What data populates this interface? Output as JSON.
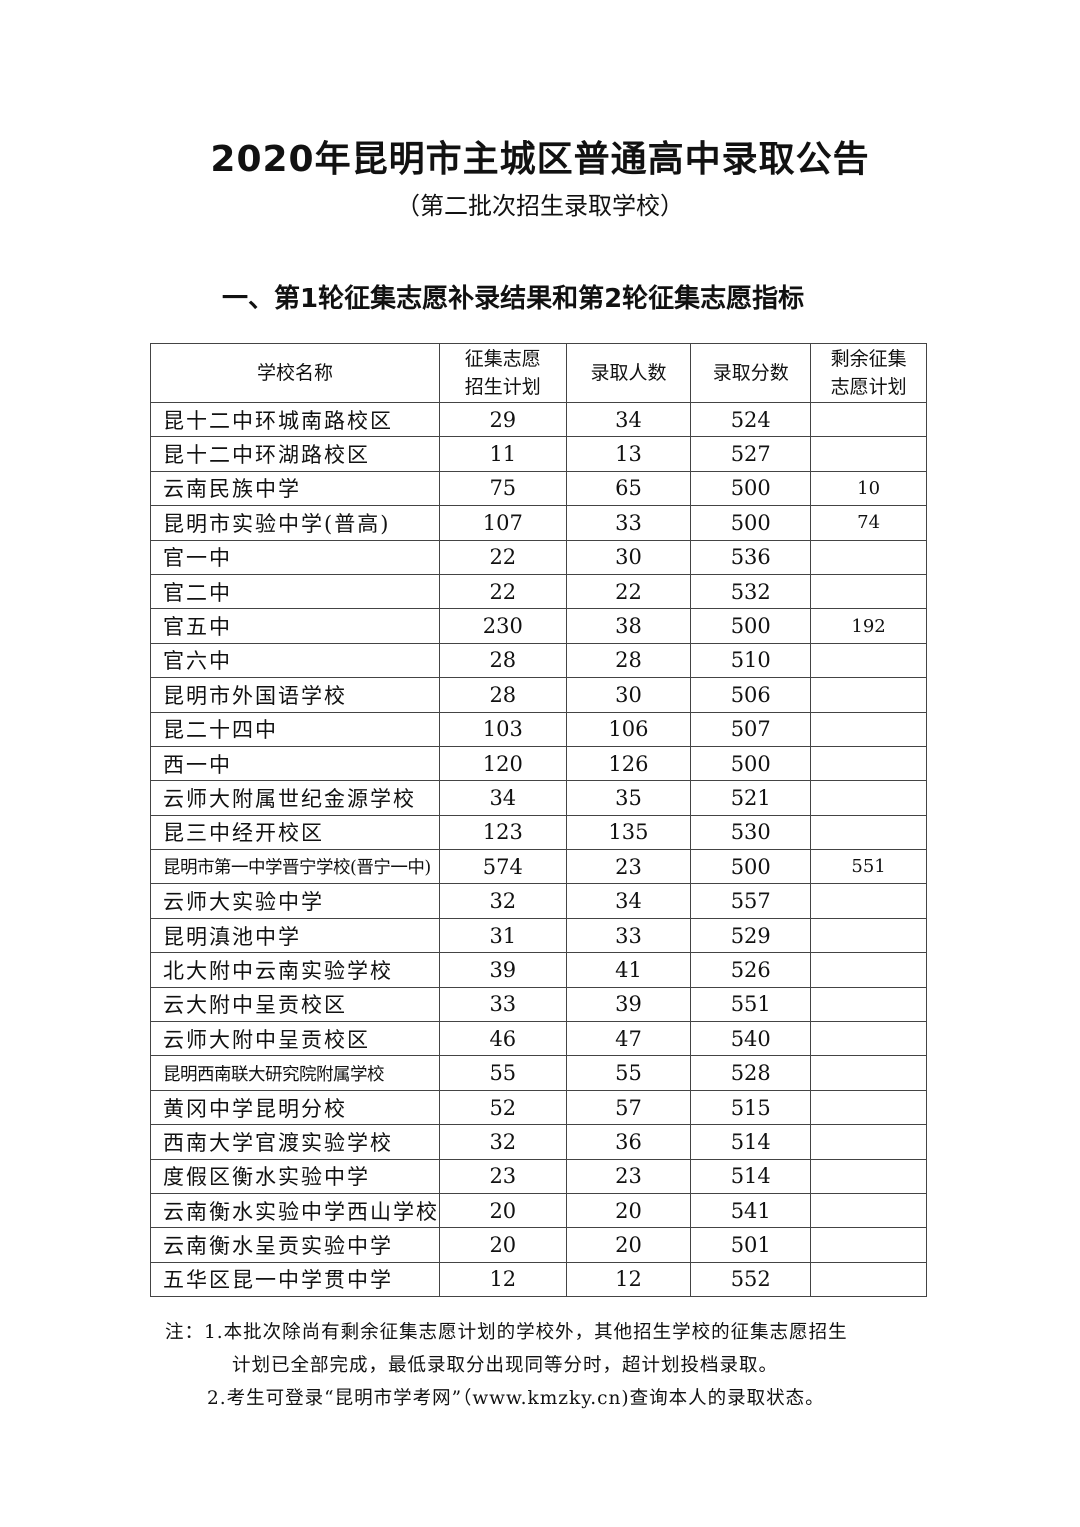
{
  "title": "2020年昆明市主城区普通高中录取公告",
  "subtitle": "（第二批次招生录取学校）",
  "section_heading": "一、第1轮征集志愿补录结果和第2轮征集志愿指标",
  "table": {
    "headers": [
      "学校名称",
      "征集志愿招生计划",
      "录取人数",
      "录取分数",
      "剩余征集志愿计划"
    ],
    "header_lines": [
      [
        "学校名称"
      ],
      [
        "征集志愿",
        "招生计划"
      ],
      [
        "录取人数"
      ],
      [
        "录取分数"
      ],
      [
        "剩余征集",
        "志愿计划"
      ]
    ],
    "rows": [
      [
        "昆十二中环城南路校区",
        "29",
        "34",
        "524",
        ""
      ],
      [
        "昆十二中环湖路校区",
        "11",
        "13",
        "527",
        ""
      ],
      [
        "云南民族中学",
        "75",
        "65",
        "500",
        "10"
      ],
      [
        "昆明市实验中学(普高)",
        "107",
        "33",
        "500",
        "74"
      ],
      [
        "官一中",
        "22",
        "30",
        "536",
        ""
      ],
      [
        "官二中",
        "22",
        "22",
        "532",
        ""
      ],
      [
        "官五中",
        "230",
        "38",
        "500",
        "192"
      ],
      [
        "官六中",
        "28",
        "28",
        "510",
        ""
      ],
      [
        "昆明市外国语学校",
        "28",
        "30",
        "506",
        ""
      ],
      [
        "昆二十四中",
        "103",
        "106",
        "507",
        ""
      ],
      [
        "西一中",
        "120",
        "126",
        "500",
        ""
      ],
      [
        "云师大附属世纪金源学校",
        "34",
        "35",
        "521",
        ""
      ],
      [
        "昆三中经开校区",
        "123",
        "135",
        "530",
        ""
      ],
      [
        "昆明市第一中学晋宁学校(晋宁一中)",
        "574",
        "23",
        "500",
        "551"
      ],
      [
        "云师大实验中学",
        "32",
        "34",
        "557",
        ""
      ],
      [
        "昆明滇池中学",
        "31",
        "33",
        "529",
        ""
      ],
      [
        "北大附中云南实验学校",
        "39",
        "41",
        "526",
        ""
      ],
      [
        "云大附中呈贡校区",
        "33",
        "39",
        "551",
        ""
      ],
      [
        "云师大附中呈贡校区",
        "46",
        "47",
        "540",
        ""
      ],
      [
        "昆明西南联大研究院附属学校",
        "55",
        "55",
        "528",
        ""
      ],
      [
        "黄冈中学昆明分校",
        "52",
        "57",
        "515",
        ""
      ],
      [
        "西南大学官渡实验学校",
        "32",
        "36",
        "514",
        ""
      ],
      [
        "度假区衡水实验中学",
        "23",
        "23",
        "514",
        ""
      ],
      [
        "云南衡水实验中学西山学校",
        "20",
        "20",
        "541",
        ""
      ],
      [
        "云南衡水呈贡实验中学",
        "20",
        "20",
        "501",
        ""
      ],
      [
        "五华区昆一中学贯中学",
        "12",
        "12",
        "552",
        ""
      ]
    ]
  },
  "notes": {
    "line1": "注：1.本批次除尚有剩余征集志愿计划的学校外，其他招生学校的征集志愿招生",
    "line2": "计划已全部完成，最低录取分出现同等分时，超计划投档录取。",
    "line3": "2.考生可登录“昆明市学考网”（www.kmzky.cn)查询本人的录取状态。"
  }
}
